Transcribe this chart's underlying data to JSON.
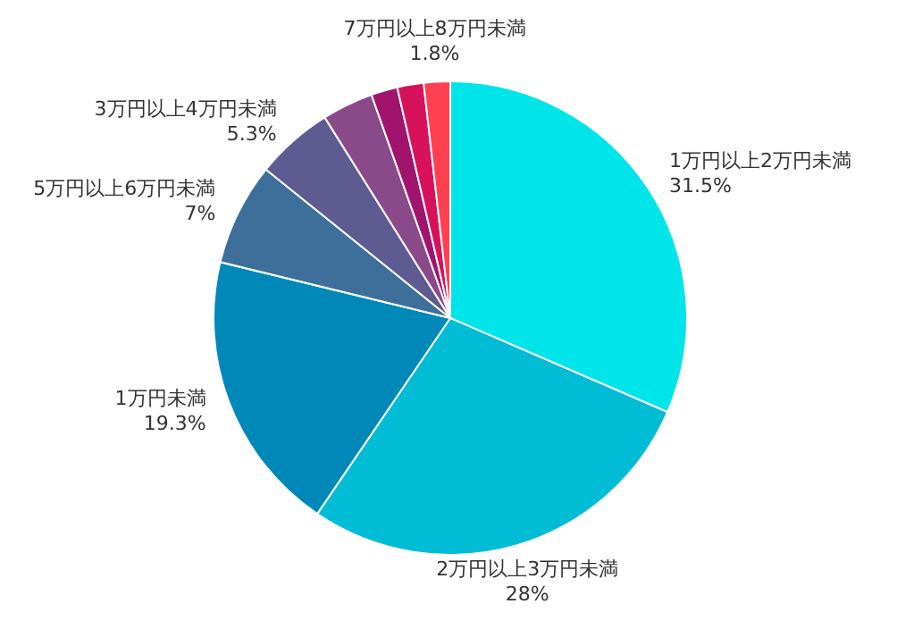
{
  "chart_data": {
    "type": "pie",
    "categories": [
      "1万円以上2万円未満",
      "2万円以上3万円未満",
      "1万円未満",
      "5万円以上6万円未満",
      "3万円以上4万円未満",
      null,
      null,
      null,
      "7万円以上8万円未満"
    ],
    "values": [
      31.5,
      28,
      19.3,
      7,
      5.3,
      3.5,
      1.8,
      1.8,
      1.8
    ],
    "value_labels": [
      "31.5%",
      "28%",
      "19.3%",
      "7%",
      "5.3%",
      null,
      null,
      null,
      "1.8%"
    ],
    "colors": [
      "#00e5ea",
      "#00bcd4",
      "#0088b8",
      "#3d6f9a",
      "#5e5a92",
      "#8a4a8a",
      "#a0146e",
      "#d8125a",
      "#ff4050"
    ],
    "legend": false
  }
}
